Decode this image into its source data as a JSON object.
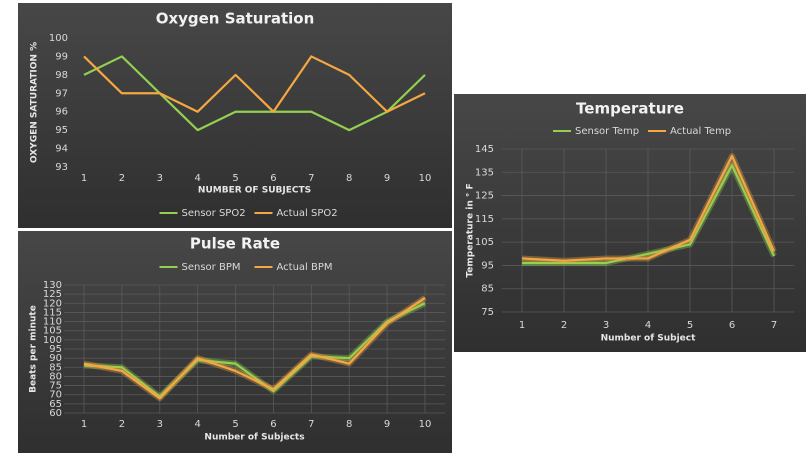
{
  "chart_data": [
    {
      "type": "line",
      "title": "Oxygen Saturation",
      "x_label": "NUMBER OF SUBJECTS",
      "y_label": "OXYGEN SATURATION %",
      "categories": [
        1,
        2,
        3,
        4,
        5,
        6,
        7,
        8,
        9,
        10
      ],
      "series": [
        {
          "name": "Sensor SPO2",
          "color": "#92d050",
          "values": [
            98,
            99,
            97,
            95,
            96,
            96,
            96,
            95,
            96,
            98
          ]
        },
        {
          "name": "Actual SPO2",
          "color": "#f4a742",
          "values": [
            99,
            97,
            97,
            96,
            98,
            96,
            99,
            98,
            96,
            97
          ]
        }
      ],
      "ylim": [
        93,
        100
      ],
      "yticks": [
        93,
        94,
        95,
        96,
        97,
        98,
        99,
        100
      ],
      "grid": false,
      "legend": "bottom"
    },
    {
      "type": "line",
      "title": "Pulse Rate",
      "x_label": "Number of Subjects",
      "y_label": "Beats per minute",
      "categories": [
        1,
        2,
        3,
        4,
        5,
        6,
        7,
        8,
        9,
        10
      ],
      "series": [
        {
          "name": "Sensor BPM",
          "color": "#92d050",
          "values": [
            86,
            85,
            69,
            89,
            87,
            72,
            91,
            90,
            110,
            120
          ]
        },
        {
          "name": "Actual BPM",
          "color": "#f4a742",
          "values": [
            87,
            83,
            68,
            90,
            83,
            73,
            92,
            87,
            109,
            123
          ]
        }
      ],
      "ylim": [
        60,
        130
      ],
      "yticks": [
        60,
        65,
        70,
        75,
        80,
        85,
        90,
        95,
        100,
        105,
        110,
        115,
        120,
        125,
        130
      ],
      "grid": true,
      "legend": "top"
    },
    {
      "type": "line",
      "title": "Temperature",
      "x_label": "Number of Subject",
      "y_label": "Temperature in ° F",
      "categories": [
        1,
        2,
        3,
        4,
        5,
        6,
        7
      ],
      "series": [
        {
          "name": "Sensor Temp",
          "color": "#92d050",
          "values": [
            96,
            96,
            96,
            100,
            104,
            138,
            99
          ]
        },
        {
          "name": "Actual Temp",
          "color": "#f4a742",
          "values": [
            98,
            97,
            98,
            98,
            106,
            142,
            101
          ]
        }
      ],
      "ylim": [
        75,
        145
      ],
      "yticks": [
        75,
        85,
        95,
        105,
        115,
        125,
        135,
        145
      ],
      "grid": true,
      "legend": "top"
    }
  ]
}
